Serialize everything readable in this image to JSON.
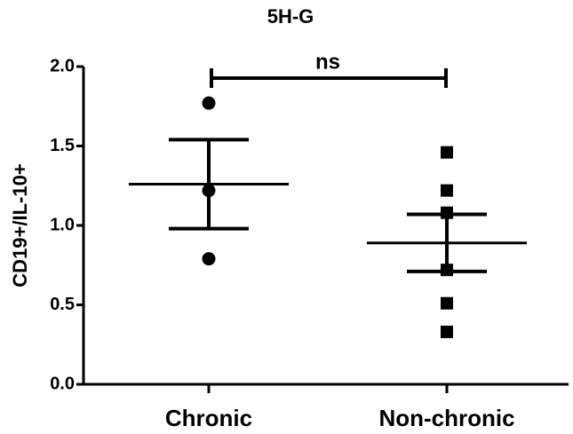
{
  "chart_data": {
    "type": "dot",
    "title": "5H-G",
    "ylabel": "CD19+/IL-10+",
    "categories": [
      "Chronic",
      "Non-chronic"
    ],
    "groups": [
      {
        "marker": "circle",
        "points": [
          1.77,
          1.22,
          0.79
        ],
        "mean": 1.26,
        "error": 0.28
      },
      {
        "marker": "square",
        "points": [
          1.46,
          1.22,
          1.08,
          0.72,
          0.51,
          0.33
        ],
        "mean": 0.89,
        "error": 0.18
      }
    ],
    "color": "#000000",
    "annotation": "ns",
    "ylim": [
      0,
      2
    ],
    "yticks": [
      {
        "value": 0,
        "label": "0.0"
      },
      0.5,
      {
        "value": 1,
        "label": "1.0"
      },
      1.5,
      {
        "value": 2,
        "label": "2.0"
      }
    ]
  }
}
